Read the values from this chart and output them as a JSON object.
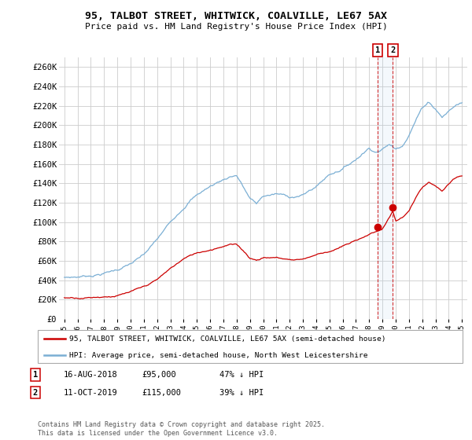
{
  "title": "95, TALBOT STREET, WHITWICK, COALVILLE, LE67 5AX",
  "subtitle": "Price paid vs. HM Land Registry's House Price Index (HPI)",
  "ylim": [
    0,
    270000
  ],
  "yticks": [
    0,
    20000,
    40000,
    60000,
    80000,
    100000,
    120000,
    140000,
    160000,
    180000,
    200000,
    220000,
    240000,
    260000
  ],
  "ytick_labels": [
    "£0",
    "£20K",
    "£40K",
    "£60K",
    "£80K",
    "£100K",
    "£120K",
    "£140K",
    "£160K",
    "£180K",
    "£200K",
    "£220K",
    "£240K",
    "£260K"
  ],
  "red_line_color": "#cc0000",
  "blue_line_color": "#7bafd4",
  "background_color": "#ffffff",
  "grid_color": "#cccccc",
  "purchase1_date": "16-AUG-2018",
  "purchase1_price": 95000,
  "purchase1_pct": "47% ↓ HPI",
  "purchase1_year": 2018.62,
  "purchase2_date": "11-OCT-2019",
  "purchase2_price": 115000,
  "purchase2_pct": "39% ↓ HPI",
  "purchase2_year": 2019.78,
  "legend_red": "95, TALBOT STREET, WHITWICK, COALVILLE, LE67 5AX (semi-detached house)",
  "legend_blue": "HPI: Average price, semi-detached house, North West Leicestershire",
  "footnote": "Contains HM Land Registry data © Crown copyright and database right 2025.\nThis data is licensed under the Open Government Licence v3.0.",
  "hpi_keypoints": [
    [
      1995.0,
      43000
    ],
    [
      1996.0,
      44000
    ],
    [
      1997.0,
      46000
    ],
    [
      1998.0,
      49000
    ],
    [
      1999.0,
      53000
    ],
    [
      2000.0,
      59000
    ],
    [
      2001.0,
      67000
    ],
    [
      2002.0,
      82000
    ],
    [
      2003.5,
      108000
    ],
    [
      2004.5,
      125000
    ],
    [
      2005.5,
      135000
    ],
    [
      2006.5,
      143000
    ],
    [
      2007.5,
      150000
    ],
    [
      2008.0,
      152000
    ],
    [
      2008.5,
      140000
    ],
    [
      2009.0,
      128000
    ],
    [
      2009.5,
      122000
    ],
    [
      2010.0,
      130000
    ],
    [
      2011.0,
      132000
    ],
    [
      2012.0,
      129000
    ],
    [
      2013.0,
      131000
    ],
    [
      2014.0,
      140000
    ],
    [
      2015.0,
      153000
    ],
    [
      2016.0,
      160000
    ],
    [
      2017.0,
      170000
    ],
    [
      2017.5,
      177000
    ],
    [
      2018.0,
      183000
    ],
    [
      2018.5,
      180000
    ],
    [
      2019.0,
      183000
    ],
    [
      2019.5,
      188000
    ],
    [
      2020.0,
      183000
    ],
    [
      2020.5,
      188000
    ],
    [
      2021.0,
      200000
    ],
    [
      2021.5,
      215000
    ],
    [
      2022.0,
      228000
    ],
    [
      2022.5,
      235000
    ],
    [
      2023.0,
      228000
    ],
    [
      2023.5,
      220000
    ],
    [
      2024.0,
      226000
    ],
    [
      2024.5,
      232000
    ],
    [
      2025.0,
      235000
    ]
  ],
  "red_keypoints": [
    [
      1995.0,
      22000
    ],
    [
      1996.0,
      23000
    ],
    [
      1997.0,
      24000
    ],
    [
      1998.0,
      25500
    ],
    [
      1999.0,
      27000
    ],
    [
      2000.0,
      30000
    ],
    [
      2001.0,
      34000
    ],
    [
      2002.0,
      41000
    ],
    [
      2003.0,
      52000
    ],
    [
      2004.0,
      62000
    ],
    [
      2005.0,
      68000
    ],
    [
      2006.0,
      72000
    ],
    [
      2007.0,
      77000
    ],
    [
      2007.5,
      79000
    ],
    [
      2008.0,
      78000
    ],
    [
      2008.5,
      72000
    ],
    [
      2009.0,
      65000
    ],
    [
      2009.5,
      63000
    ],
    [
      2010.0,
      66000
    ],
    [
      2011.0,
      66000
    ],
    [
      2012.0,
      64000
    ],
    [
      2013.0,
      65000
    ],
    [
      2014.0,
      70000
    ],
    [
      2015.0,
      74000
    ],
    [
      2016.0,
      79000
    ],
    [
      2017.0,
      84000
    ],
    [
      2017.5,
      88000
    ],
    [
      2018.0,
      91000
    ],
    [
      2018.62,
      95000
    ],
    [
      2019.0,
      97000
    ],
    [
      2019.78,
      115000
    ],
    [
      2020.0,
      105000
    ],
    [
      2020.5,
      108000
    ],
    [
      2021.0,
      115000
    ],
    [
      2021.5,
      128000
    ],
    [
      2022.0,
      138000
    ],
    [
      2022.5,
      143000
    ],
    [
      2023.0,
      138000
    ],
    [
      2023.5,
      133000
    ],
    [
      2024.0,
      140000
    ],
    [
      2024.5,
      145000
    ],
    [
      2025.0,
      147000
    ]
  ]
}
